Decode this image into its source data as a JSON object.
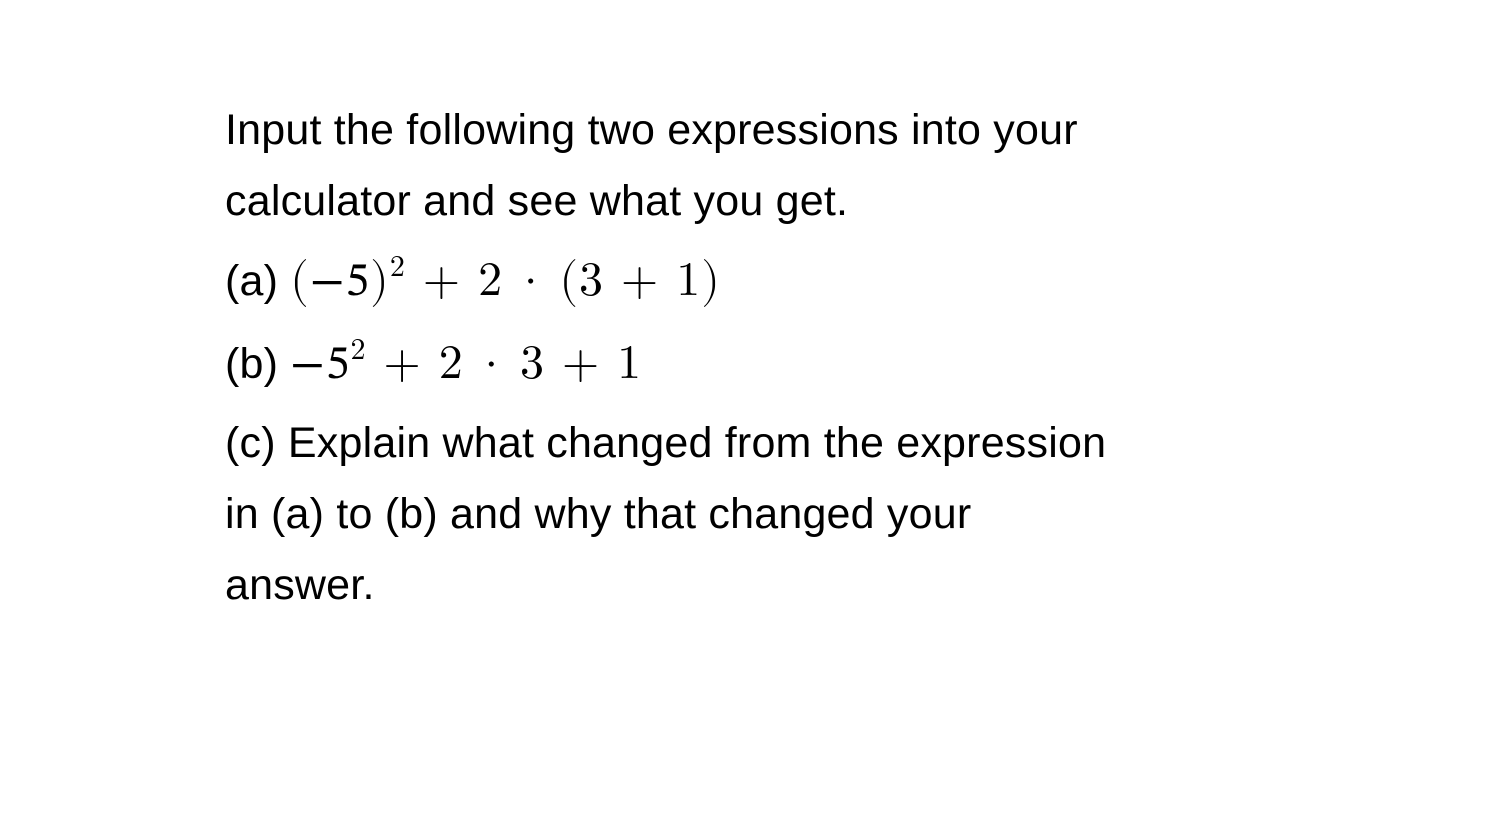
{
  "problem": {
    "intro_line1": "Input the following two expressions into your",
    "intro_line2": "calculator and see what you get.",
    "part_a": {
      "label": "(a)",
      "expression_open": "(",
      "expression_neg": "−5",
      "expression_close_paren": ")",
      "expression_exp": "2",
      "expression_plus1": " + 2",
      "expression_dot": "·",
      "expression_paren2": "(3 + 1)"
    },
    "part_b": {
      "label": "(b)",
      "expression_neg": "−5",
      "expression_exp": "2",
      "expression_plus1": " + 2",
      "expression_dot": "·",
      "expression_rest": "3 + 1"
    },
    "part_c": {
      "label": "(c) ",
      "text_line1": "Explain what changed from the expression",
      "text_line2": "in (a) to (b) and why that changed your",
      "text_line3": "answer."
    }
  },
  "styling": {
    "background_color": "#ffffff",
    "text_color": "#000000",
    "body_font_size": 43,
    "math_font_size": 48,
    "line_height": 1.65,
    "sup_font_size": 30
  }
}
